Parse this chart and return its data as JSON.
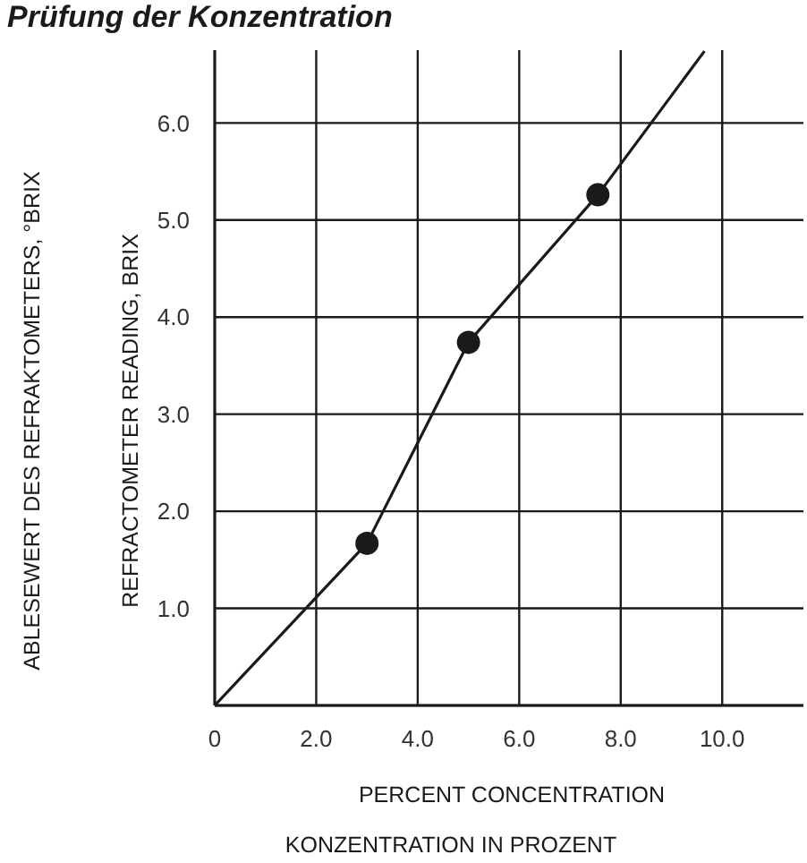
{
  "chart_data": {
    "type": "line",
    "title": "Prüfung der Konzentration",
    "xlabel": [
      "PERCENT CONCENTRATION",
      "KONZENTRATION IN PROZENT"
    ],
    "ylabel": [
      "ABLESEWERT DES REFRAKTOMETERS, °BRIX",
      "REFRACTOMETER READING, BRIX"
    ],
    "xlim": [
      0,
      11.6
    ],
    "xticks": [
      0,
      {
        "value": 2,
        "label": "2.0"
      },
      {
        "value": 4,
        "label": "4.0"
      },
      {
        "value": 6,
        "label": "6.0"
      },
      {
        "value": 8,
        "label": "8.0"
      },
      {
        "value": 10,
        "label": "10.0"
      }
    ],
    "ylim": [
      0,
      6.75
    ],
    "yticks": [
      {
        "value": 0,
        "label": null
      },
      {
        "value": 1,
        "label": "1.0"
      },
      {
        "value": 2,
        "label": "2.0"
      },
      {
        "value": 3,
        "label": "3.0"
      },
      {
        "value": 4,
        "label": "4.0"
      },
      {
        "value": 5,
        "label": "5.0"
      },
      {
        "value": 6,
        "label": "6.0"
      }
    ],
    "grid": true,
    "series": [
      {
        "color": "#1a1a1a",
        "marker": "none",
        "x": [
          0,
          3.0,
          5.0,
          7.55,
          9.65
        ],
        "values": [
          0,
          1.67,
          3.74,
          5.26,
          6.74
        ]
      },
      {
        "type": "scatter",
        "color": "#1a1a1a",
        "marker": "circle",
        "x": [
          3.0,
          5.0,
          7.55
        ],
        "values": [
          1.67,
          3.74,
          5.26
        ]
      }
    ]
  }
}
